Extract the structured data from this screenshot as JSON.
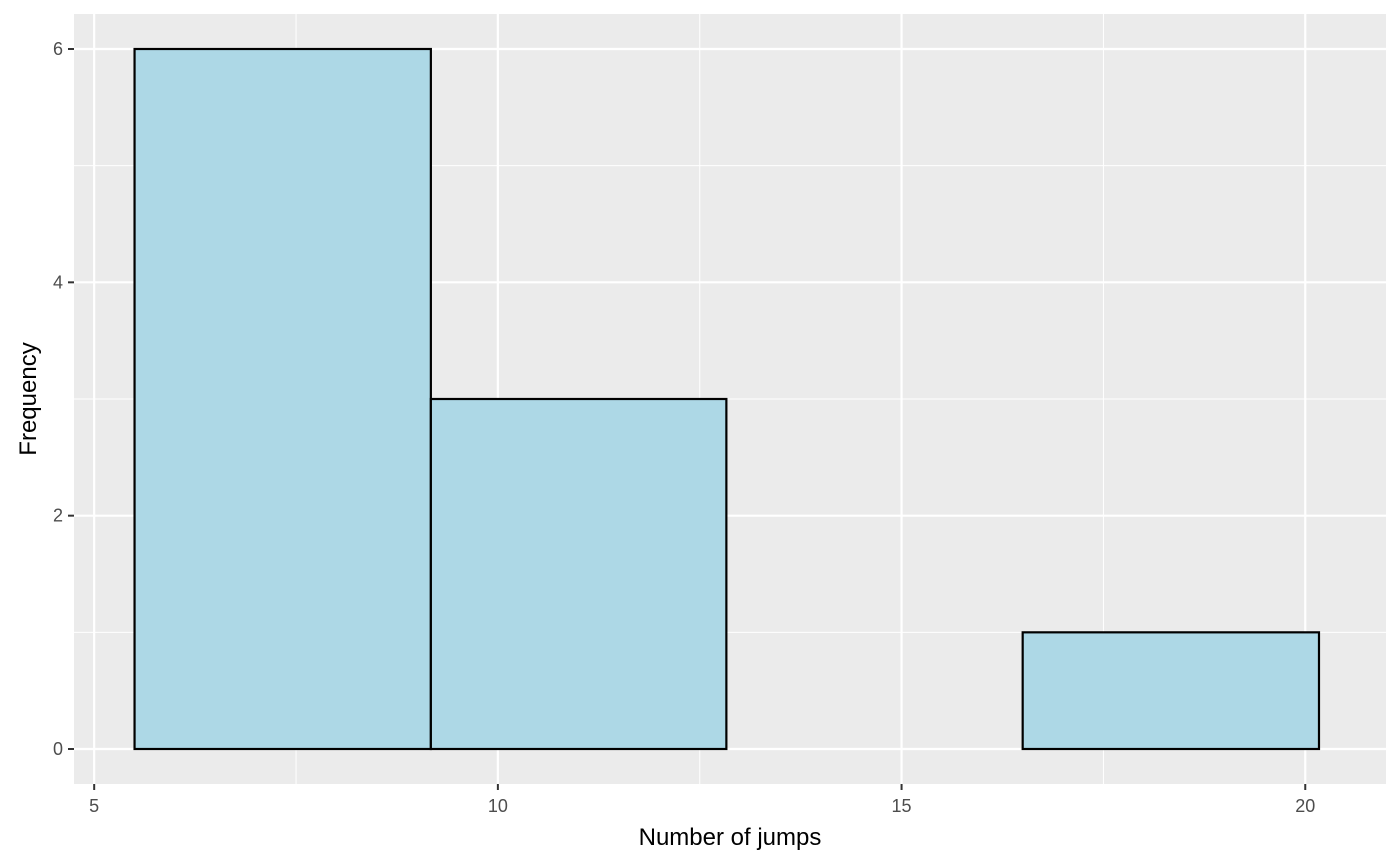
{
  "chart_data": {
    "type": "bar",
    "histogram": true,
    "bins": [
      {
        "x_start": 5.5,
        "x_end": 9.17,
        "count": 6
      },
      {
        "x_start": 9.17,
        "x_end": 12.83,
        "count": 3
      },
      {
        "x_start": 12.83,
        "x_end": 16.5,
        "count": 0
      },
      {
        "x_start": 16.5,
        "x_end": 20.17,
        "count": 1
      }
    ],
    "title": "",
    "xlabel": "Number of jumps",
    "ylabel": "Frequency",
    "xlim": [
      4.75,
      21.0
    ],
    "ylim": [
      -0.3,
      6.3
    ],
    "x_ticks": [
      5,
      10,
      15,
      20
    ],
    "x_minor_ticks": [
      7.5,
      12.5,
      17.5
    ],
    "y_ticks": [
      0,
      2,
      4,
      6
    ],
    "y_minor_ticks": [
      1,
      3,
      5
    ],
    "x_tick_labels": [
      "5",
      "10",
      "15",
      "20"
    ],
    "y_tick_labels": [
      "0",
      "2",
      "4",
      "6"
    ],
    "grid": true,
    "legend": "none",
    "colors": {
      "bar_fill": "#add8e6",
      "bar_outline": "#000000",
      "panel_background": "#ebebeb",
      "grid_line": "#ffffff",
      "tick_text": "#4d4d4d",
      "tick_mark": "#333333"
    }
  }
}
